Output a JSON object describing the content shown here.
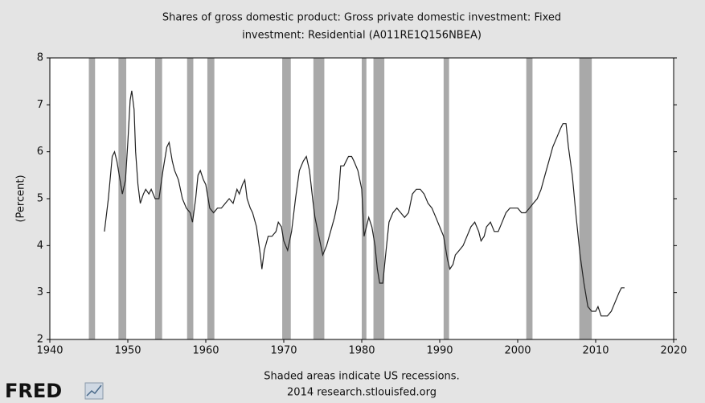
{
  "chart_data": {
    "type": "line",
    "title_lines": [
      "Shares of gross domestic product: Gross private domestic investment: Fixed",
      "investment: Residential (A011RE1Q156NBEA)"
    ],
    "y_label": "(Percent)",
    "note": "Shaded areas indicate US recessions.",
    "source": "2014 research.stlouisfed.org",
    "logo": "FRED",
    "xlim": [
      1940,
      2020
    ],
    "xticks": [
      1940,
      1950,
      1960,
      1970,
      1980,
      1990,
      2000,
      2010,
      2020
    ],
    "ylim": [
      2,
      8
    ],
    "yticks": [
      2,
      3,
      4,
      5,
      6,
      7,
      8
    ],
    "grid": false,
    "recession_color": "#a9a9a9",
    "recessions": [
      [
        1945.0,
        1945.8
      ],
      [
        1948.8,
        1949.8
      ],
      [
        1953.5,
        1954.4
      ],
      [
        1957.6,
        1958.4
      ],
      [
        1960.2,
        1961.1
      ],
      [
        1969.8,
        1970.9
      ],
      [
        1973.8,
        1975.2
      ],
      [
        1980.0,
        1980.6
      ],
      [
        1981.5,
        1982.9
      ],
      [
        1990.5,
        1991.2
      ],
      [
        2001.1,
        2001.9
      ],
      [
        2007.9,
        2009.5
      ]
    ],
    "series": [
      {
        "name": "A011RE1Q156NBEA",
        "color": "#222222",
        "x": [
          1947.0,
          1947.5,
          1948.0,
          1948.3,
          1948.6,
          1949.0,
          1949.3,
          1949.7,
          1950.0,
          1950.3,
          1950.5,
          1950.8,
          1951.0,
          1951.3,
          1951.6,
          1952.0,
          1952.3,
          1952.7,
          1953.0,
          1953.5,
          1954.0,
          1954.5,
          1955.0,
          1955.3,
          1955.7,
          1956.0,
          1956.5,
          1957.0,
          1957.5,
          1958.0,
          1958.3,
          1958.7,
          1959.0,
          1959.3,
          1959.7,
          1960.0,
          1960.5,
          1961.0,
          1961.5,
          1962.0,
          1962.5,
          1963.0,
          1963.5,
          1964.0,
          1964.3,
          1964.7,
          1965.0,
          1965.3,
          1965.7,
          1966.0,
          1966.5,
          1967.0,
          1967.2,
          1967.5,
          1968.0,
          1968.5,
          1969.0,
          1969.3,
          1969.7,
          1970.0,
          1970.5,
          1971.0,
          1971.5,
          1972.0,
          1972.5,
          1972.9,
          1973.3,
          1973.7,
          1974.0,
          1974.5,
          1975.0,
          1975.5,
          1976.0,
          1976.5,
          1977.0,
          1977.3,
          1977.7,
          1978.0,
          1978.3,
          1978.7,
          1979.0,
          1979.5,
          1980.0,
          1980.3,
          1980.6,
          1980.9,
          1981.3,
          1981.7,
          1982.0,
          1982.3,
          1982.7,
          1983.0,
          1983.5,
          1984.0,
          1984.5,
          1985.0,
          1985.5,
          1986.0,
          1986.5,
          1987.0,
          1987.5,
          1988.0,
          1988.5,
          1989.0,
          1989.5,
          1990.0,
          1990.5,
          1991.0,
          1991.3,
          1991.7,
          1992.0,
          1992.5,
          1993.0,
          1993.5,
          1994.0,
          1994.5,
          1995.0,
          1995.3,
          1995.7,
          1996.0,
          1996.5,
          1997.0,
          1997.5,
          1998.0,
          1998.5,
          1999.0,
          1999.5,
          2000.0,
          2000.5,
          2001.0,
          2001.5,
          2002.0,
          2002.5,
          2003.0,
          2003.5,
          2004.0,
          2004.5,
          2005.0,
          2005.5,
          2005.8,
          2006.2,
          2006.5,
          2007.0,
          2007.5,
          2008.0,
          2008.5,
          2009.0,
          2009.5,
          2010.0,
          2010.3,
          2010.7,
          2011.0,
          2011.5,
          2012.0,
          2012.5,
          2013.0,
          2013.3,
          2013.7
        ],
        "values": [
          4.3,
          5.0,
          5.9,
          6.0,
          5.8,
          5.4,
          5.1,
          5.4,
          6.2,
          7.1,
          7.3,
          6.9,
          6.0,
          5.3,
          4.9,
          5.1,
          5.2,
          5.1,
          5.2,
          5.0,
          5.0,
          5.6,
          6.1,
          6.2,
          5.8,
          5.6,
          5.4,
          5.0,
          4.8,
          4.7,
          4.5,
          5.0,
          5.5,
          5.6,
          5.4,
          5.3,
          4.8,
          4.7,
          4.8,
          4.8,
          4.9,
          5.0,
          4.9,
          5.2,
          5.1,
          5.3,
          5.4,
          5.0,
          4.8,
          4.7,
          4.4,
          3.8,
          3.5,
          3.9,
          4.2,
          4.2,
          4.3,
          4.5,
          4.4,
          4.1,
          3.9,
          4.3,
          5.0,
          5.6,
          5.8,
          5.9,
          5.6,
          5.0,
          4.6,
          4.2,
          3.8,
          4.0,
          4.3,
          4.6,
          5.0,
          5.7,
          5.7,
          5.8,
          5.9,
          5.9,
          5.8,
          5.6,
          5.2,
          4.2,
          4.4,
          4.6,
          4.4,
          4.0,
          3.5,
          3.2,
          3.2,
          3.7,
          4.5,
          4.7,
          4.8,
          4.7,
          4.6,
          4.7,
          5.1,
          5.2,
          5.2,
          5.1,
          4.9,
          4.8,
          4.6,
          4.4,
          4.2,
          3.7,
          3.5,
          3.6,
          3.8,
          3.9,
          4.0,
          4.2,
          4.4,
          4.5,
          4.3,
          4.1,
          4.2,
          4.4,
          4.5,
          4.3,
          4.3,
          4.5,
          4.7,
          4.8,
          4.8,
          4.8,
          4.7,
          4.7,
          4.8,
          4.9,
          5.0,
          5.2,
          5.5,
          5.8,
          6.1,
          6.3,
          6.5,
          6.6,
          6.6,
          6.1,
          5.5,
          4.6,
          3.8,
          3.2,
          2.7,
          2.6,
          2.6,
          2.7,
          2.5,
          2.5,
          2.5,
          2.6,
          2.8,
          3.0,
          3.1,
          3.1
        ]
      }
    ]
  }
}
